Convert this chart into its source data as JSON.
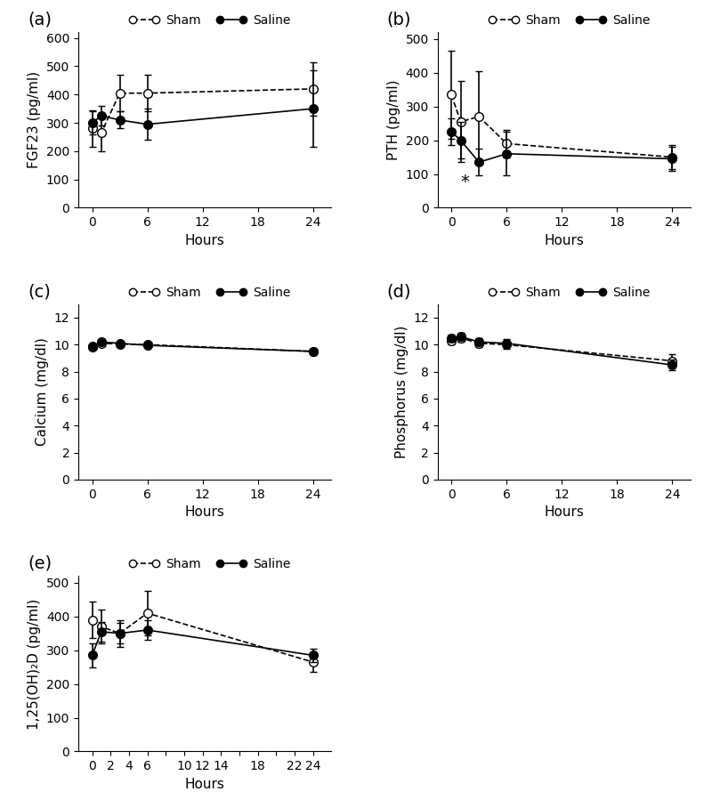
{
  "panel_a": {
    "title": "(a)",
    "ylabel": "FGF23 (pg/ml)",
    "xlabel": "Hours",
    "xlim": [
      -1.5,
      26
    ],
    "ylim": [
      0,
      620
    ],
    "yticks": [
      0,
      100,
      200,
      300,
      400,
      500,
      600
    ],
    "xticks": [
      0,
      6,
      12,
      18,
      24
    ],
    "sham_x": [
      0,
      1,
      3,
      6,
      24
    ],
    "sham_y": [
      280,
      265,
      405,
      405,
      420
    ],
    "sham_err": [
      65,
      65,
      65,
      65,
      95
    ],
    "saline_x": [
      0,
      1,
      3,
      6,
      24
    ],
    "saline_y": [
      300,
      325,
      310,
      295,
      350
    ],
    "saline_err": [
      40,
      35,
      30,
      55,
      135
    ]
  },
  "panel_b": {
    "title": "(b)",
    "ylabel": "PTH (pg/ml)",
    "xlabel": "Hours",
    "xlim": [
      -1.5,
      26
    ],
    "ylim": [
      0,
      520
    ],
    "yticks": [
      0,
      100,
      200,
      300,
      400,
      500
    ],
    "xticks": [
      0,
      6,
      12,
      18,
      24
    ],
    "sham_x": [
      0,
      1,
      3,
      6,
      24
    ],
    "sham_y": [
      335,
      255,
      270,
      190,
      150
    ],
    "sham_err": [
      130,
      120,
      135,
      40,
      35
    ],
    "saline_x": [
      0,
      1,
      3,
      6,
      24
    ],
    "saline_y": [
      225,
      200,
      135,
      160,
      145
    ],
    "saline_err": [
      40,
      55,
      40,
      65,
      35
    ],
    "star_x": 1.5,
    "star_y": 52
  },
  "panel_c": {
    "title": "(c)",
    "ylabel": "Calcium (mg/dl)",
    "xlabel": "Hours",
    "xlim": [
      -1.5,
      26
    ],
    "ylim": [
      0,
      13
    ],
    "yticks": [
      0,
      2,
      4,
      6,
      8,
      10,
      12
    ],
    "xticks": [
      0,
      6,
      12,
      18,
      24
    ],
    "sham_x": [
      0,
      1,
      3,
      6,
      24
    ],
    "sham_y": [
      9.8,
      10.1,
      10.05,
      10.0,
      9.5
    ],
    "sham_err": [
      0.15,
      0.15,
      0.12,
      0.15,
      0.2
    ],
    "saline_x": [
      0,
      1,
      3,
      6,
      24
    ],
    "saline_y": [
      9.9,
      10.2,
      10.1,
      9.95,
      9.5
    ],
    "saline_err": [
      0.15,
      0.12,
      0.12,
      0.15,
      0.2
    ]
  },
  "panel_d": {
    "title": "(d)",
    "ylabel": "Phosphorus (mg/dl)",
    "xlabel": "Hours",
    "xlim": [
      -1.5,
      26
    ],
    "ylim": [
      0,
      13
    ],
    "yticks": [
      0,
      2,
      4,
      6,
      8,
      10,
      12
    ],
    "xticks": [
      0,
      6,
      12,
      18,
      24
    ],
    "sham_x": [
      0,
      1,
      3,
      6,
      24
    ],
    "sham_y": [
      10.3,
      10.5,
      10.1,
      10.0,
      8.8
    ],
    "sham_err": [
      0.3,
      0.25,
      0.25,
      0.3,
      0.5
    ],
    "saline_x": [
      0,
      1,
      3,
      6,
      24
    ],
    "saline_y": [
      10.5,
      10.6,
      10.2,
      10.1,
      8.5
    ],
    "saline_err": [
      0.25,
      0.25,
      0.25,
      0.3,
      0.4
    ]
  },
  "panel_e": {
    "title": "(e)",
    "ylabel": "1,25(OH)₂D (pg/ml)",
    "xlabel": "Hours",
    "xlim": [
      -1.5,
      26
    ],
    "ylim": [
      0,
      520
    ],
    "yticks": [
      0,
      100,
      200,
      300,
      400,
      500
    ],
    "xticks": [
      0,
      2,
      4,
      6,
      8,
      10,
      12,
      14,
      16,
      18,
      20,
      22,
      24
    ],
    "xtick_labels": [
      "0",
      "2",
      "4",
      "6",
      "",
      "10",
      "12",
      "14",
      "",
      "18",
      "",
      "22",
      "24"
    ],
    "sham_x": [
      0,
      1,
      3,
      6,
      24
    ],
    "sham_y": [
      390,
      370,
      350,
      410,
      265
    ],
    "sham_err": [
      55,
      50,
      40,
      65,
      30
    ],
    "saline_x": [
      0,
      1,
      3,
      6,
      24
    ],
    "saline_y": [
      285,
      355,
      350,
      360,
      285
    ],
    "saline_err": [
      35,
      30,
      30,
      30,
      20
    ]
  },
  "line_color": "#000000",
  "marker_size": 7,
  "capsize": 3,
  "legend_fontsize": 10,
  "label_fontsize": 11,
  "tick_fontsize": 10,
  "panel_label_fontsize": 14
}
